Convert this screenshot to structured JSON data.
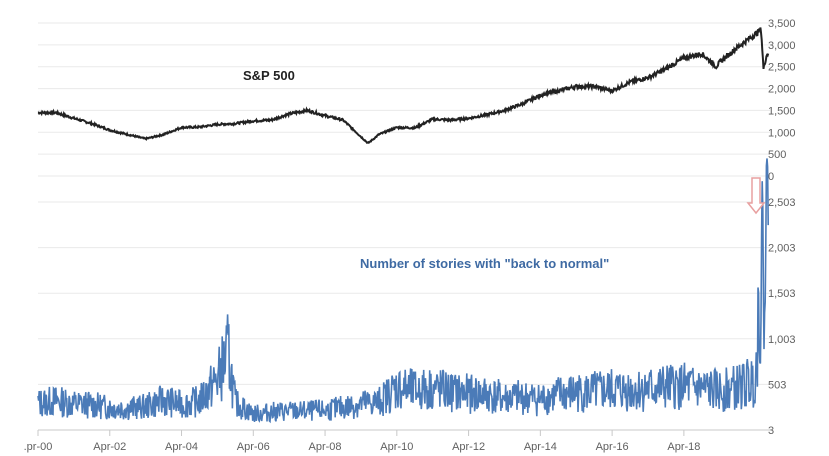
{
  "chart_data": [
    {
      "type": "line",
      "series": [
        {
          "name": "S&P 500",
          "color": "#222222",
          "x": [
            2000.0,
            2000.5,
            2001.0,
            2001.5,
            2002.0,
            2002.5,
            2003.0,
            2003.5,
            2004.0,
            2004.5,
            2005.0,
            2005.5,
            2006.0,
            2006.5,
            2007.0,
            2007.5,
            2008.0,
            2008.5,
            2009.0,
            2009.2,
            2009.5,
            2010.0,
            2010.5,
            2011.0,
            2011.5,
            2012.0,
            2012.5,
            2013.0,
            2013.5,
            2014.0,
            2014.5,
            2015.0,
            2015.5,
            2016.0,
            2016.5,
            2017.0,
            2017.5,
            2018.0,
            2018.5,
            2018.9,
            2019.0,
            2019.5,
            2020.0,
            2020.15,
            2020.22,
            2020.3,
            2020.35
          ],
          "values": [
            1450,
            1450,
            1320,
            1200,
            1050,
            950,
            850,
            950,
            1110,
            1120,
            1180,
            1200,
            1260,
            1280,
            1420,
            1500,
            1380,
            1280,
            900,
            750,
            950,
            1110,
            1100,
            1300,
            1280,
            1320,
            1400,
            1500,
            1650,
            1850,
            1950,
            2050,
            2050,
            1950,
            2150,
            2250,
            2450,
            2700,
            2800,
            2500,
            2600,
            2950,
            3250,
            3350,
            2450,
            2750,
            2800
          ]
        }
      ],
      "annotation": "S&P 500",
      "ylim": [
        0,
        3500
      ],
      "yticks": [
        "0",
        "500",
        "1,000",
        "1,500",
        "2,000",
        "2,500",
        "3,000",
        "3,500"
      ]
    },
    {
      "type": "line",
      "series": [
        {
          "name": "Number of stories with \"back to normal\"",
          "color": "#4b7bb8",
          "x": [
            2000.0,
            2000.5,
            2001.0,
            2001.5,
            2002.0,
            2002.5,
            2003.0,
            2003.5,
            2004.0,
            2004.5,
            2005.0,
            2005.3,
            2005.5,
            2006.0,
            2006.5,
            2007.0,
            2007.5,
            2008.0,
            2008.5,
            2009.0,
            2009.5,
            2010.0,
            2010.5,
            2011.0,
            2011.5,
            2012.0,
            2012.5,
            2013.0,
            2013.5,
            2014.0,
            2014.5,
            2015.0,
            2015.5,
            2016.0,
            2016.5,
            2017.0,
            2017.5,
            2018.0,
            2018.5,
            2019.0,
            2019.5,
            2019.9,
            2020.0,
            2020.1,
            2020.2,
            2020.3,
            2020.35
          ],
          "values": [
            300,
            320,
            290,
            280,
            250,
            240,
            260,
            330,
            280,
            320,
            560,
            850,
            300,
            180,
            200,
            210,
            210,
            220,
            250,
            290,
            310,
            470,
            430,
            460,
            420,
            400,
            390,
            350,
            360,
            340,
            390,
            410,
            420,
            440,
            440,
            450,
            470,
            480,
            450,
            430,
            470,
            530,
            600,
            1450,
            1830,
            2200,
            2250
          ]
        }
      ],
      "annotation": "Number of stories with \"back to normal\"",
      "ylim": [
        3,
        2503
      ],
      "yticks": [
        "3",
        "503",
        "1,003",
        "1,503",
        "2,003",
        "2,503"
      ]
    }
  ],
  "x_axis": {
    "ticks": [
      ".pr-00",
      "Apr-02",
      "Apr-04",
      "Apr-06",
      "Apr-08",
      "Apr-10",
      "Apr-12",
      "Apr-14",
      "Apr-16",
      "Apr-18"
    ],
    "tick_values": [
      2000,
      2002,
      2004,
      2006,
      2008,
      2010,
      2012,
      2014,
      2016,
      2018
    ]
  },
  "arrow_color": "#e8a0a0"
}
